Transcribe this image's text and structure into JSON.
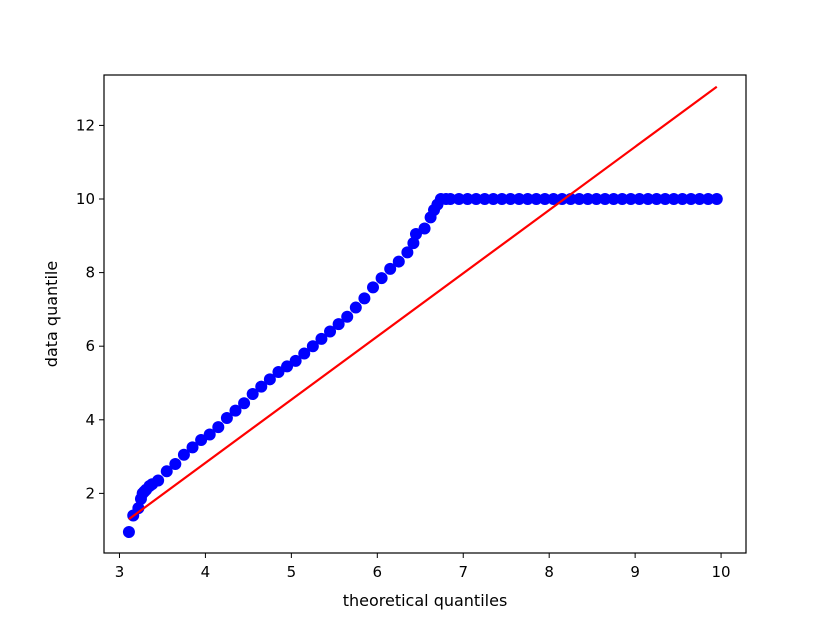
{
  "chart_data": {
    "type": "scatter",
    "title": "",
    "xlabel": "theoretical quantiles",
    "ylabel": "data quantile",
    "xlim": [
      2.82,
      10.29
    ],
    "ylim": [
      0.38,
      13.37
    ],
    "xticks": [
      3,
      4,
      5,
      6,
      7,
      8,
      9,
      10
    ],
    "yticks": [
      2,
      4,
      6,
      8,
      10,
      12
    ],
    "grid": false,
    "legend": "none",
    "colors": {
      "points": "#0000ff",
      "line": "#ff0000",
      "frame": "#000000"
    },
    "series": [
      {
        "kind": "points",
        "x": [
          3.11,
          3.16,
          3.22,
          3.25,
          3.27,
          3.29,
          3.31,
          3.35,
          3.38,
          3.45,
          3.55,
          3.65,
          3.75,
          3.85,
          3.95,
          4.05,
          4.15,
          4.25,
          4.35,
          4.45,
          4.55,
          4.65,
          4.75,
          4.85,
          4.95,
          5.05,
          5.15,
          5.25,
          5.35,
          5.45,
          5.55,
          5.65,
          5.75,
          5.85,
          5.95,
          6.05,
          6.15,
          6.25,
          6.35,
          6.42,
          6.45,
          6.55,
          6.62,
          6.66,
          6.7,
          6.74,
          6.8,
          6.85,
          6.95,
          7.05,
          7.15,
          7.25,
          7.35,
          7.45,
          7.55,
          7.65,
          7.75,
          7.85,
          7.95,
          8.05,
          8.15,
          8.25,
          8.35,
          8.45,
          8.55,
          8.65,
          8.75,
          8.85,
          8.95,
          9.05,
          9.15,
          9.25,
          9.35,
          9.45,
          9.55,
          9.65,
          9.75,
          9.85,
          9.95
        ],
        "y": [
          0.95,
          1.4,
          1.6,
          1.85,
          2.0,
          2.05,
          2.1,
          2.2,
          2.25,
          2.35,
          2.6,
          2.8,
          3.05,
          3.25,
          3.45,
          3.6,
          3.8,
          4.05,
          4.25,
          4.45,
          4.7,
          4.9,
          5.1,
          5.3,
          5.45,
          5.6,
          5.8,
          6.0,
          6.2,
          6.4,
          6.6,
          6.8,
          7.05,
          7.3,
          7.6,
          7.85,
          8.1,
          8.3,
          8.55,
          8.8,
          9.05,
          9.2,
          9.5,
          9.7,
          9.85,
          10.0,
          10.0,
          10.0,
          10.0,
          10.0,
          10.0,
          10.0,
          10.0,
          10.0,
          10.0,
          10.0,
          10.0,
          10.0,
          10.0,
          10.0,
          10.0,
          10.0,
          10.0,
          10.0,
          10.0,
          10.0,
          10.0,
          10.0,
          10.0,
          10.0,
          10.0,
          10.0,
          10.0,
          10.0,
          10.0,
          10.0,
          10.0,
          10.0,
          10.0
        ]
      },
      {
        "kind": "line",
        "x": [
          3.11,
          9.95
        ],
        "y": [
          1.3,
          13.05
        ]
      }
    ]
  }
}
